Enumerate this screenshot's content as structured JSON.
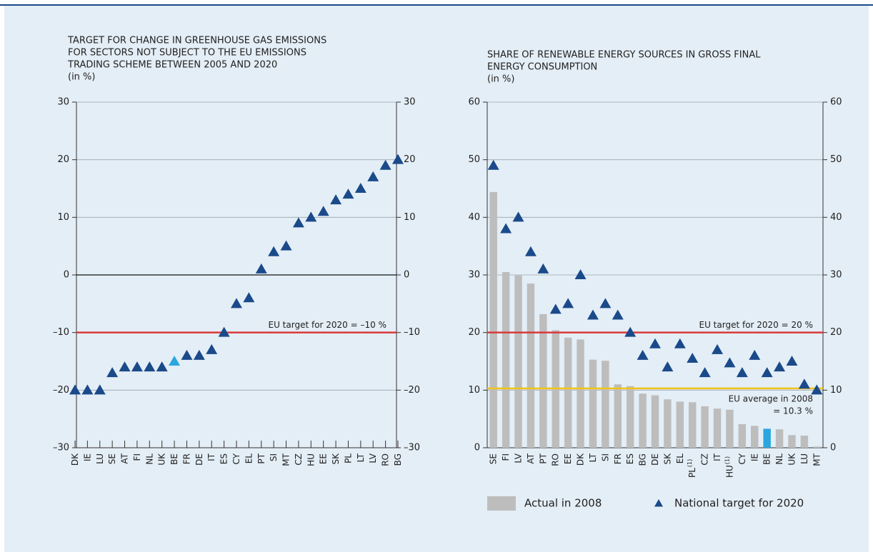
{
  "chart_data": [
    {
      "type": "marker",
      "title": [
        "TARGET FOR CHANGE IN GREENHOUSE GAS EMISSIONS",
        "FOR SECTORS NOT SUBJECT TO THE EU EMISSIONS",
        "TRADING SCHEME BETWEEN 2005 AND 2020"
      ],
      "unit": "(in %)",
      "categories": [
        "DK",
        "IE",
        "LU",
        "SE",
        "AT",
        "FI",
        "NL",
        "UK",
        "BE",
        "FR",
        "DE",
        "IT",
        "ES",
        "CY",
        "EL",
        "PT",
        "SI",
        "MT",
        "CZ",
        "HU",
        "EE",
        "SK",
        "PL",
        "LT",
        "LV",
        "RO",
        "BG"
      ],
      "series": [
        {
          "values": [
            -20,
            -20,
            -20,
            -17,
            -16,
            -16,
            -16,
            -16,
            -15,
            -14,
            -14,
            -13,
            -10,
            -5,
            -4,
            1,
            4,
            5,
            9,
            10,
            11,
            13,
            14,
            15,
            17,
            19,
            20
          ],
          "color": "#1a4a8a",
          "point_colors": [
            "#1a4a8a",
            "#1a4a8a",
            "#1a4a8a",
            "#1a4a8a",
            "#1a4a8a",
            "#1a4a8a",
            "#1a4a8a",
            "#1a4a8a",
            "#2ba6de",
            "#1a4a8a",
            "#1a4a8a",
            "#1a4a8a",
            "#1a4a8a",
            "#1a4a8a",
            "#1a4a8a",
            "#1a4a8a",
            "#1a4a8a",
            "#1a4a8a",
            "#1a4a8a",
            "#1a4a8a",
            "#1a4a8a",
            "#1a4a8a",
            "#1a4a8a",
            "#1a4a8a",
            "#1a4a8a",
            "#1a4a8a",
            "#1a4a8a"
          ]
        }
      ],
      "ylim": [
        -30,
        30
      ],
      "yticks": [
        {
          "value": -30,
          "label": "–30"
        },
        {
          "value": -20,
          "label": "–20"
        },
        {
          "value": -10,
          "label": "–10"
        },
        0,
        10,
        20,
        30
      ],
      "grid": true,
      "zero_line": true,
      "reference_lines": [
        {
          "value": -10,
          "label": [
            "EU target for 2020 = –10 %"
          ],
          "color": "#d93a3a"
        }
      ]
    },
    {
      "type": "bar_marker",
      "title": [
        "SHARE OF RENEWABLE ENERGY SOURCES IN GROSS FINAL",
        "ENERGY CONSUMPTION"
      ],
      "unit": "(in %)",
      "categories": [
        "SE",
        "FI",
        "LV",
        "AT",
        "PT",
        "RO",
        "EE",
        "DK",
        "LT",
        "SI",
        "FR",
        "ES",
        "BG",
        "DE",
        "SK",
        "EL",
        "PL",
        "CZ",
        "IT",
        "HU",
        "CY",
        "IE",
        "BE",
        "NL",
        "UK",
        "LU",
        "MT"
      ],
      "category_superscripts": [
        null,
        null,
        null,
        null,
        null,
        null,
        null,
        null,
        null,
        null,
        null,
        null,
        null,
        null,
        null,
        null,
        "(1)",
        null,
        null,
        "(1)",
        null,
        null,
        null,
        null,
        null,
        null,
        null
      ],
      "series": [
        {
          "name": "Actual in 2008",
          "mark": "bar",
          "color": "#bdbdbd",
          "values": [
            44.4,
            30.5,
            29.9,
            28.5,
            23.2,
            20.4,
            19.1,
            18.8,
            15.3,
            15.1,
            11.0,
            10.7,
            9.4,
            9.1,
            8.4,
            8.0,
            7.9,
            7.2,
            6.8,
            6.6,
            4.1,
            3.8,
            3.3,
            3.2,
            2.2,
            2.1,
            0.2
          ],
          "point_colors": [
            "#bdbdbd",
            "#bdbdbd",
            "#bdbdbd",
            "#bdbdbd",
            "#bdbdbd",
            "#bdbdbd",
            "#bdbdbd",
            "#bdbdbd",
            "#bdbdbd",
            "#bdbdbd",
            "#bdbdbd",
            "#bdbdbd",
            "#bdbdbd",
            "#bdbdbd",
            "#bdbdbd",
            "#bdbdbd",
            "#bdbdbd",
            "#bdbdbd",
            "#bdbdbd",
            "#bdbdbd",
            "#bdbdbd",
            "#bdbdbd",
            "#2ba6de",
            "#bdbdbd",
            "#bdbdbd",
            "#bdbdbd",
            "#bdbdbd"
          ]
        },
        {
          "name": "National target for 2020",
          "mark": "triangle",
          "color": "#1a4a8a",
          "values": [
            49,
            38,
            40,
            34,
            31,
            24,
            25,
            30,
            23,
            25,
            23,
            20,
            16,
            18,
            14,
            18,
            15.5,
            13,
            17,
            14.7,
            13,
            16,
            13,
            14,
            15,
            11,
            10
          ]
        }
      ],
      "ylim": [
        0,
        60
      ],
      "yticks": [
        0,
        10,
        20,
        30,
        40,
        50,
        60
      ],
      "grid": true,
      "zero_line": false,
      "reference_lines": [
        {
          "value": 20,
          "label": [
            "EU target for 2020 = 20 %"
          ],
          "color": "#d93a3a"
        },
        {
          "value": 10.3,
          "label": [
            "EU average in 2008",
            "= 10.3 %"
          ],
          "color": "#f0c419"
        }
      ]
    }
  ]
}
